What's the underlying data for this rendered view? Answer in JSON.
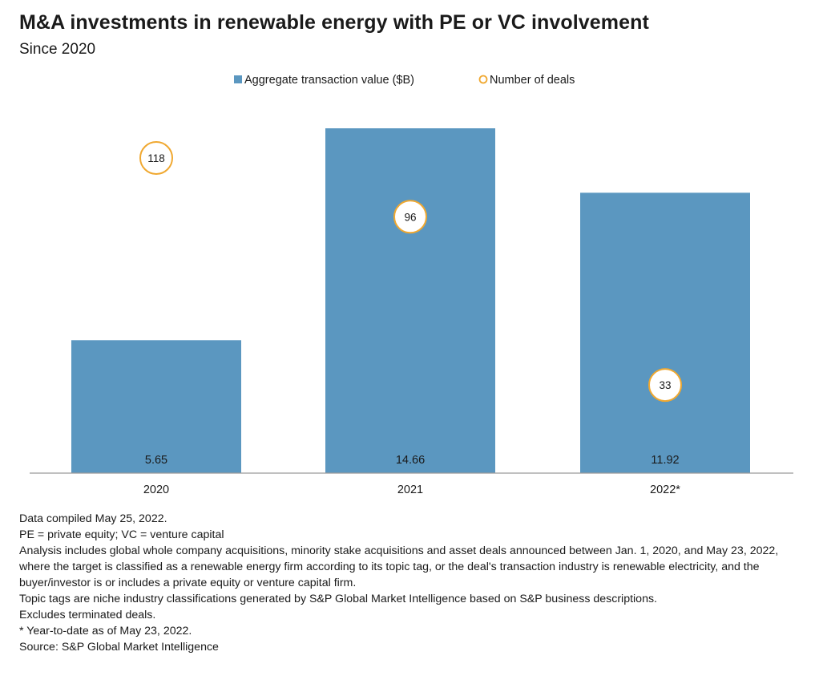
{
  "title": "M&A investments in renewable energy with PE or VC involvement",
  "subtitle": "Since 2020",
  "legend": {
    "bar_label": "Aggregate transaction value ($B)",
    "deals_label": "Number of deals"
  },
  "colors": {
    "bar": "#5b97c0",
    "deals_circle": "#f0a830",
    "axis": "#9a9a9a",
    "text": "#1a1a1a"
  },
  "chart_data": {
    "type": "bar",
    "title": "M&A investments in renewable energy with PE or VC involvement",
    "subtitle": "Since 2020",
    "categories": [
      "2020",
      "2021",
      "2022*"
    ],
    "series": [
      {
        "name": "Aggregate transaction value ($B)",
        "type": "bar",
        "values": [
          5.65,
          14.66,
          11.92
        ]
      },
      {
        "name": "Number of deals",
        "type": "circle-marker",
        "values": [
          118,
          96,
          33
        ]
      }
    ],
    "bar_ylim": [
      0,
      15
    ],
    "deals_ylim": [
      0,
      150
    ],
    "grid": false,
    "legend_position": "top-center"
  },
  "notes": [
    "Data compiled May 25, 2022.",
    "PE = private equity; VC = venture capital",
    "Analysis includes global whole company acquisitions, minority stake acquisitions and asset deals announced between Jan. 1, 2020, and May 23, 2022, where the target is classified as a renewable energy firm according to its topic tag, or the deal's transaction industry is renewable electricity, and the buyer/investor is or includes a private equity or venture capital firm.",
    "Topic tags are niche industry classifications generated by S&P Global Market Intelligence based on S&P business descriptions.",
    "Excludes terminated deals.",
    "* Year-to-date as of May 23, 2022.",
    "Source: S&P Global Market Intelligence"
  ]
}
